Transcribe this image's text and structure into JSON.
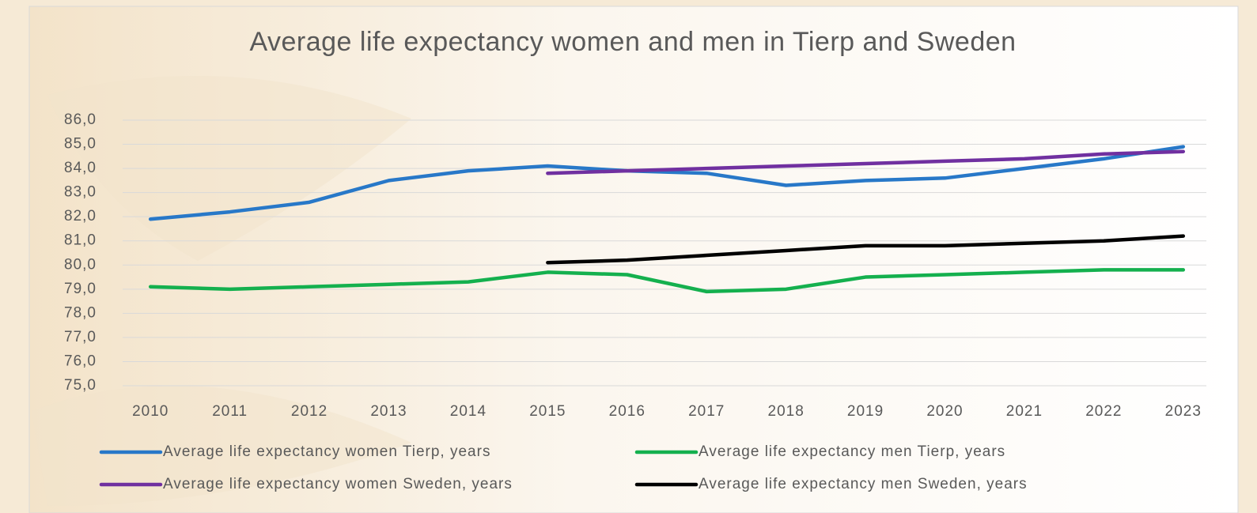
{
  "chart_data": {
    "type": "line",
    "title": "Average life expectancy women and men in Tierp and Sweden",
    "categories": [
      "2010",
      "2011",
      "2012",
      "2013",
      "2014",
      "2015",
      "2016",
      "2017",
      "2018",
      "2019",
      "2020",
      "2021",
      "2022",
      "2023"
    ],
    "series": [
      {
        "name": "Average life expectancy women Tierp, years",
        "color": "#2878c8",
        "values": [
          81.9,
          82.2,
          82.6,
          83.5,
          83.9,
          84.1,
          83.9,
          83.8,
          83.3,
          83.5,
          83.6,
          84.0,
          84.4,
          84.9
        ]
      },
      {
        "name": "Average life expectancy men Tierp, years",
        "color": "#14b04e",
        "values": [
          79.1,
          79.0,
          79.1,
          79.2,
          79.3,
          79.7,
          79.6,
          78.9,
          79.0,
          79.5,
          79.6,
          79.7,
          79.8,
          79.8
        ]
      },
      {
        "name": "Average life expectancy women Sweden, years",
        "color": "#7030a0",
        "values": [
          null,
          null,
          null,
          null,
          null,
          83.8,
          83.9,
          84.0,
          84.1,
          84.2,
          84.3,
          84.4,
          84.6,
          84.7
        ]
      },
      {
        "name": "Average life expectancy men Sweden, years",
        "color": "#000000",
        "values": [
          null,
          null,
          null,
          null,
          null,
          80.1,
          80.2,
          80.4,
          80.6,
          80.8,
          80.8,
          80.9,
          81.0,
          81.2
        ]
      }
    ],
    "ylim": [
      75,
      86
    ],
    "yticks": [
      {
        "value": 75,
        "label": "75,0"
      },
      {
        "value": 76,
        "label": "76,0"
      },
      {
        "value": 77,
        "label": "77,0"
      },
      {
        "value": 78,
        "label": "78,0"
      },
      {
        "value": 79,
        "label": "79,0"
      },
      {
        "value": 80,
        "label": "80,0"
      },
      {
        "value": 81,
        "label": "81,0"
      },
      {
        "value": 82,
        "label": "82,0"
      },
      {
        "value": 83,
        "label": "83,0"
      },
      {
        "value": 84,
        "label": "84,0"
      },
      {
        "value": 85,
        "label": "85,0"
      },
      {
        "value": 86,
        "label": "86,0"
      }
    ],
    "grid": true,
    "legend": "bottom"
  }
}
